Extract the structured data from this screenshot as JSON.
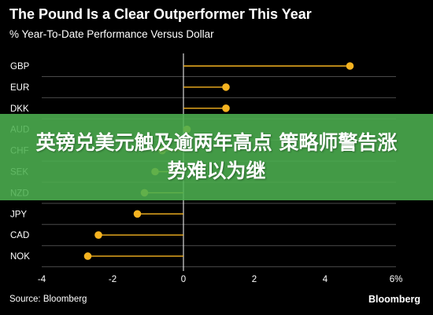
{
  "header": {
    "title": "The Pound Is a Clear Outperformer This Year",
    "subtitle": "% Year-To-Date Performance Versus Dollar"
  },
  "chart_data": {
    "type": "lollipop",
    "title": "The Pound Is a Clear Outperformer This Year",
    "subtitle": "% Year-To-Date Performance Versus Dollar",
    "categories": [
      "GBP",
      "EUR",
      "DKK",
      "AUD",
      "CHF",
      "SEK",
      "NZD",
      "JPY",
      "CAD",
      "NOK"
    ],
    "values": [
      4.7,
      1.2,
      1.2,
      0.1,
      -0.6,
      -0.8,
      -1.1,
      -1.3,
      -2.4,
      -2.7
    ],
    "xlim": [
      -4,
      6
    ],
    "xticks": [
      "-4",
      "-2",
      "0",
      "2",
      "4",
      "6%"
    ],
    "grid": true,
    "colors": {
      "marker": "#f5b320",
      "stem": "#f5b320",
      "grid": "#4a4a4a",
      "zero_line": "#ffffff"
    }
  },
  "overlay": {
    "text": "英镑兑美元触及逾两年高点 策略师警告涨势难以为继",
    "color": "#4caf50"
  },
  "footer": {
    "source": "Source: Bloomberg",
    "brand": "Bloomberg"
  }
}
